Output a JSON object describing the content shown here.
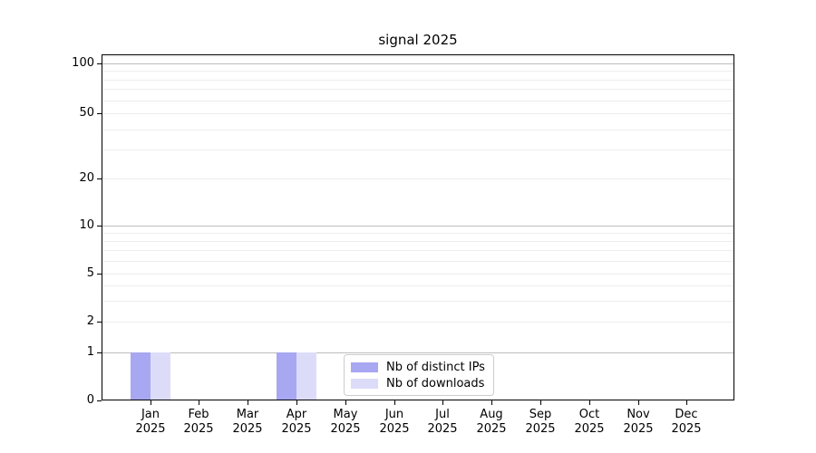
{
  "chart_data": {
    "type": "bar",
    "title": "signal 2025",
    "categories": [
      "Jan",
      "Feb",
      "Mar",
      "Apr",
      "May",
      "Jun",
      "Jul",
      "Aug",
      "Sep",
      "Oct",
      "Nov",
      "Dec"
    ],
    "category_year": "2025",
    "series": [
      {
        "name": "Nb of distinct IPs",
        "color": "#a7a7f2",
        "values": [
          1,
          0,
          0,
          1,
          0,
          0,
          0,
          0,
          0,
          0,
          0,
          0
        ]
      },
      {
        "name": "Nb of downloads",
        "color": "#dcdcf9",
        "values": [
          1,
          0,
          0,
          1,
          0,
          0,
          0,
          0,
          0,
          0,
          0,
          0
        ]
      }
    ],
    "xlabel": "",
    "ylabel": "",
    "y_ticks": [
      0,
      1,
      2,
      5,
      10,
      20,
      50,
      100
    ],
    "y_tick_labels": [
      "0",
      "1",
      "2",
      "5",
      "10",
      "20",
      "50",
      "100"
    ],
    "y_scale": "symlog",
    "ylim": [
      0,
      113
    ],
    "grid": "horizontal major and log-minor gridlines",
    "legend_position": "lower center-left inside plot"
  },
  "colors": {
    "bar_distinct_ips": "#a7a7f2",
    "bar_downloads": "#dcdcf9",
    "grid_major": "#bdbdbd",
    "grid_minor": "#ededed",
    "axis": "#000000",
    "legend_border": "#cccccc",
    "background": "#ffffff"
  }
}
